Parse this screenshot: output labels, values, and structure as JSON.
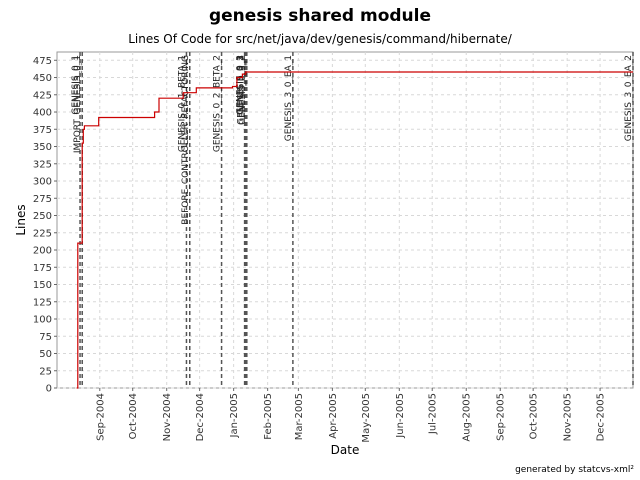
{
  "chart_data": {
    "type": "line",
    "title": "genesis shared module",
    "subtitle": "Lines Of Code for src/net/java/dev/genesis/command/hibernate/",
    "xlabel": "Date",
    "ylabel": "Lines",
    "ylim": [
      0,
      487
    ],
    "xlim": [
      "2004-07-24",
      "2005-12-31"
    ],
    "grid": true,
    "yticks": [
      0,
      25,
      50,
      75,
      100,
      125,
      150,
      175,
      200,
      225,
      250,
      275,
      300,
      325,
      350,
      375,
      400,
      425,
      450,
      475
    ],
    "xticks": [
      {
        "date": "2004-09-01",
        "label": "Sep-2004"
      },
      {
        "date": "2004-10-01",
        "label": "Oct-2004"
      },
      {
        "date": "2004-11-01",
        "label": "Nov-2004"
      },
      {
        "date": "2004-12-01",
        "label": "Dec-2004"
      },
      {
        "date": "2005-01-01",
        "label": "Jan-2005"
      },
      {
        "date": "2005-02-01",
        "label": "Feb-2005"
      },
      {
        "date": "2005-03-01",
        "label": "Mar-2005"
      },
      {
        "date": "2005-04-01",
        "label": "Apr-2005"
      },
      {
        "date": "2005-05-01",
        "label": "May-2005"
      },
      {
        "date": "2005-06-01",
        "label": "Jun-2005"
      },
      {
        "date": "2005-07-01",
        "label": "Jul-2005"
      },
      {
        "date": "2005-08-01",
        "label": "Aug-2005"
      },
      {
        "date": "2005-09-01",
        "label": "Sep-2005"
      },
      {
        "date": "2005-10-01",
        "label": "Oct-2005"
      },
      {
        "date": "2005-11-01",
        "label": "Nov-2005"
      },
      {
        "date": "2005-12-01",
        "label": "Dec-2005"
      }
    ],
    "series": [
      {
        "color": "#cc0000",
        "step": true,
        "points": [
          {
            "x": "2004-08-11",
            "y": 0
          },
          {
            "x": "2004-08-12",
            "y": 210
          },
          {
            "x": "2004-08-16",
            "y": 355
          },
          {
            "x": "2004-08-17",
            "y": 375
          },
          {
            "x": "2004-08-18",
            "y": 380
          },
          {
            "x": "2004-08-31",
            "y": 392
          },
          {
            "x": "2004-10-21",
            "y": 400
          },
          {
            "x": "2004-10-25",
            "y": 420
          },
          {
            "x": "2004-11-16",
            "y": 428
          },
          {
            "x": "2004-11-28",
            "y": 435
          },
          {
            "x": "2004-12-31",
            "y": 437
          },
          {
            "x": "2005-01-04",
            "y": 450
          },
          {
            "x": "2005-01-09",
            "y": 455
          },
          {
            "x": "2005-01-12",
            "y": 458
          },
          {
            "x": "2005-12-31",
            "y": 458
          }
        ]
      }
    ],
    "annotations": [
      {
        "x": "2004-08-14",
        "label": "GENESIS_0_1"
      },
      {
        "x": "2004-08-16",
        "label": "IMPORT_GENESIS_0_1"
      },
      {
        "x": "2004-11-19",
        "label": "GENESIS_0_1_BETA_1"
      },
      {
        "x": "2004-11-22",
        "label": "BEFORE_CONTROLLER_REFACTORING"
      },
      {
        "x": "2004-12-21",
        "label": "GENESIS_0_2_BETA_2"
      },
      {
        "x": "2005-01-11",
        "label": "GENESIS_0_2"
      },
      {
        "x": "2005-01-12",
        "label": "GENESIS_0_3"
      },
      {
        "x": "2005-01-12",
        "label": "GENESIS_0_3_1"
      },
      {
        "x": "2005-01-13",
        "label": "GENESIS_0_3_2"
      },
      {
        "x": "2005-02-24",
        "label": "GENESIS_3_0_EA_1"
      },
      {
        "x": "2005-12-31",
        "label": "GENESIS_3_0_EA_2"
      }
    ]
  },
  "footer": "generated by statcvs-xml²"
}
